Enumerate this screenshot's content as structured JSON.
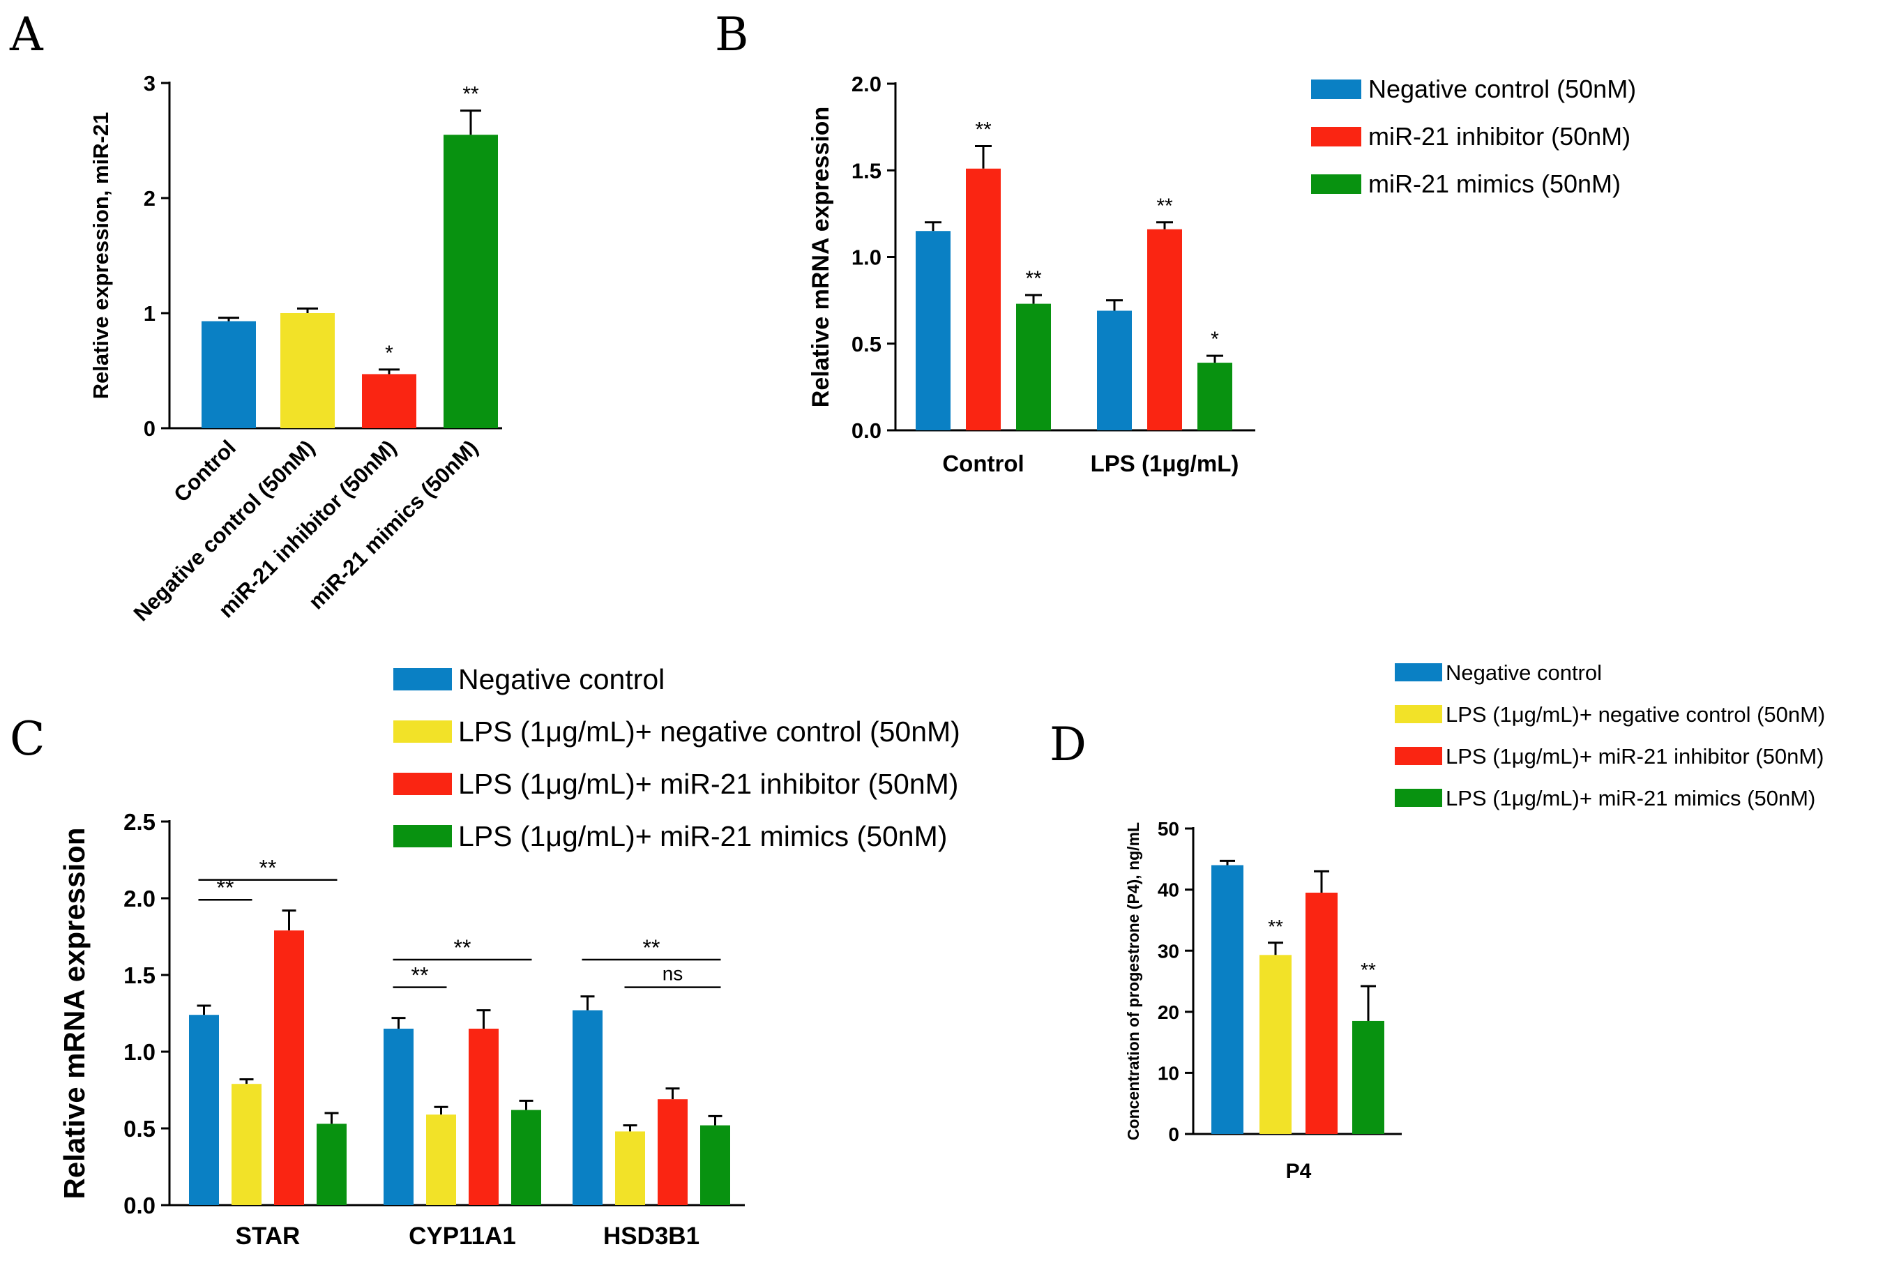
{
  "colors": {
    "blue": "#0a80c4",
    "yellow": "#f2e228",
    "red": "#fa2512",
    "green": "#089210",
    "axis": "#000000"
  },
  "chart_data": [
    {
      "panel": "A",
      "type": "bar",
      "categories": [
        "Control",
        "Negative control (50nM)",
        "miR-21 inhibitor (50nM)",
        "miR-21 mimics (50nM)"
      ],
      "values": [
        0.93,
        1.0,
        0.47,
        2.55
      ],
      "errors": [
        0.03,
        0.04,
        0.04,
        0.21
      ],
      "significance": [
        "",
        "",
        "*",
        "**"
      ],
      "bar_colors": [
        "#0a80c4",
        "#f2e228",
        "#fa2512",
        "#089210"
      ],
      "title": "",
      "xlabel": "",
      "ylabel": "Relative  expression,  miR-21",
      "ylim": [
        0,
        3
      ],
      "yticks": [
        0,
        1,
        2,
        3
      ],
      "ytick_labels": [
        "0",
        "1",
        "2",
        "3"
      ]
    },
    {
      "panel": "B",
      "type": "bar",
      "categories": [
        "Control",
        "LPS (1μg/mL)"
      ],
      "series": [
        {
          "name": "Negative control (50nM)",
          "color": "#0a80c4",
          "values": [
            1.15,
            0.69
          ],
          "errors": [
            0.05,
            0.06
          ],
          "significance": [
            "",
            ""
          ]
        },
        {
          "name": "miR-21 inhibitor (50nM)",
          "color": "#fa2512",
          "values": [
            1.51,
            1.16
          ],
          "errors": [
            0.13,
            0.04
          ],
          "significance": [
            "**",
            "**"
          ]
        },
        {
          "name": " miR-21 mimics (50nM)",
          "color": "#089210",
          "values": [
            0.73,
            0.39
          ],
          "errors": [
            0.05,
            0.04
          ],
          "significance": [
            "**",
            "*"
          ]
        }
      ],
      "title": "",
      "xlabel": "",
      "ylabel": "Relative mRNA expression",
      "ylim": [
        0,
        2.0
      ],
      "yticks": [
        0,
        0.5,
        1.0,
        1.5,
        2.0
      ],
      "ytick_labels": [
        "0.0",
        "0.5",
        "1.0",
        "1.5",
        "2.0"
      ],
      "legend_position": "top-right"
    },
    {
      "panel": "C",
      "type": "bar",
      "categories": [
        "STAR",
        "CYP11A1",
        "HSD3B1"
      ],
      "series": [
        {
          "name": "Negative control",
          "color": "#0a80c4",
          "values": [
            1.24,
            1.15,
            1.27
          ],
          "errors": [
            0.06,
            0.07,
            0.09
          ]
        },
        {
          "name": "LPS (1μg/mL)+ negative control (50nM)",
          "color": "#f2e228",
          "values": [
            0.79,
            0.59,
            0.48
          ],
          "errors": [
            0.03,
            0.05,
            0.04
          ]
        },
        {
          "name": "LPS (1μg/mL)+ miR-21 inhibitor (50nM)",
          "color": "#fa2512",
          "values": [
            1.79,
            1.15,
            0.69
          ],
          "errors": [
            0.13,
            0.12,
            0.07
          ]
        },
        {
          "name": "LPS (1μg/mL)+ miR-21 mimics (50nM)",
          "color": "#089210",
          "values": [
            0.53,
            0.62,
            0.52
          ],
          "errors": [
            0.07,
            0.06,
            0.06
          ]
        }
      ],
      "comparisons": [
        {
          "category": 0,
          "from_series": 0,
          "to_series": 1,
          "y": 1.99,
          "label": "**"
        },
        {
          "category": 0,
          "from_series": 0,
          "to_series": 3,
          "y": 2.12,
          "label": "**"
        },
        {
          "category": 1,
          "from_series": 0,
          "to_series": 1,
          "y": 1.42,
          "label": "**"
        },
        {
          "category": 1,
          "from_series": 0,
          "to_series": 3,
          "y": 1.6,
          "label": "**"
        },
        {
          "category": 2,
          "from_series": 0,
          "to_series": 3,
          "y": 1.6,
          "label": "**"
        },
        {
          "category": 2,
          "from_series": 1,
          "to_series": 3,
          "y": 1.42,
          "label": "ns"
        }
      ],
      "title": "",
      "xlabel": "",
      "ylabel": "Relative mRNA expression",
      "ylim": [
        0,
        2.5
      ],
      "yticks": [
        0,
        0.5,
        1.0,
        1.5,
        2.0,
        2.5
      ],
      "ytick_labels": [
        "0.0",
        "0.5",
        "1.0",
        "1.5",
        "2.0",
        "2.5"
      ],
      "legend_position": "top"
    },
    {
      "panel": "D",
      "type": "bar",
      "categories": [
        "P4"
      ],
      "series": [
        {
          "name": "Negative control",
          "color": "#0a80c4",
          "values": [
            44
          ],
          "errors": [
            0.7
          ],
          "significance": [
            ""
          ]
        },
        {
          "name": "LPS (1μg/mL)+ negative control (50nM)",
          "color": "#f2e228",
          "values": [
            29.3
          ],
          "errors": [
            2.0
          ],
          "significance": [
            "**"
          ]
        },
        {
          "name": "LPS (1μg/mL)+ miR-21 inhibitor (50nM)",
          "color": "#fa2512",
          "values": [
            39.5
          ],
          "errors": [
            3.5
          ],
          "significance": [
            ""
          ]
        },
        {
          "name": "LPS (1μg/mL)+ miR-21 mimics (50nM)",
          "color": "#089210",
          "values": [
            18.5
          ],
          "errors": [
            5.7
          ],
          "significance": [
            "**"
          ]
        }
      ],
      "title": "",
      "xlabel": "",
      "ylabel": "Concentration of progestrone (P4), ng/mL",
      "ylim": [
        0,
        50
      ],
      "yticks": [
        0,
        10,
        20,
        30,
        40,
        50
      ],
      "ytick_labels": [
        "0",
        "10",
        "20",
        "30",
        "40",
        "50"
      ],
      "legend_position": "top-right"
    }
  ]
}
